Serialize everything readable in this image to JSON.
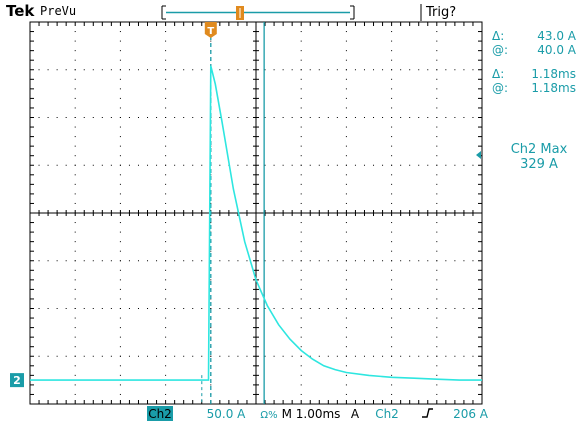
{
  "brand": "Tek",
  "acq_mode": "PreVu",
  "trigger_status": "Trig?",
  "cursors": {
    "v_delta_symbol": "Δ:",
    "v_delta": "43.0 A",
    "v_at_symbol": "@:",
    "v_at": "40.0 A",
    "t_delta_symbol": "Δ:",
    "t_delta": "1.18ms",
    "t_at_symbol": "@:",
    "t_at": "1.18ms"
  },
  "measurement": {
    "label": "Ch2 Max",
    "value": "329 A"
  },
  "channel_marker": "2",
  "trigger_marker": "T",
  "status_bar": {
    "channel": "Ch2",
    "scale": "50.0 A",
    "coupling_symbol": "Ω%",
    "timebase": "M 1.00ms",
    "units": "A",
    "trig_source": "Ch2",
    "trig_slope": "ɺ",
    "trig_level": "206 A"
  },
  "colors": {
    "trace": "#2ee6e0",
    "accent": "#1a9ca8",
    "readout": "#1a9ca8",
    "grid": "#000000",
    "trigger_marker": "#e08a1e"
  },
  "chart_data": {
    "type": "line",
    "title": "",
    "xlabel": "",
    "ylabel": "",
    "x_units": "ms",
    "y_units": "A",
    "x_per_div": 1.0,
    "y_per_div": 50.0,
    "x_divisions": 10,
    "y_divisions": 8,
    "xlim": [
      -4.0,
      6.0
    ],
    "ylim": [
      -25.0,
      375.0
    ],
    "grid": true,
    "series": [
      {
        "name": "",
        "x": [
          -4.0,
          -3.5,
          -3.0,
          -2.5,
          -2.0,
          -1.5,
          -1.0,
          -0.5,
          -0.05,
          0.0,
          0.1,
          0.25,
          0.5,
          0.75,
          1.0,
          1.25,
          1.5,
          1.75,
          2.0,
          2.25,
          2.5,
          2.75,
          3.0,
          3.5,
          4.0,
          4.5,
          5.0,
          5.5,
          6.0
        ],
        "y": [
          0,
          0,
          0,
          0,
          0,
          0,
          0,
          0,
          0,
          329,
          310,
          270,
          200,
          145,
          105,
          78,
          58,
          43,
          31,
          22,
          15,
          11,
          8,
          5,
          3,
          2,
          1,
          0,
          0
        ]
      }
    ]
  }
}
